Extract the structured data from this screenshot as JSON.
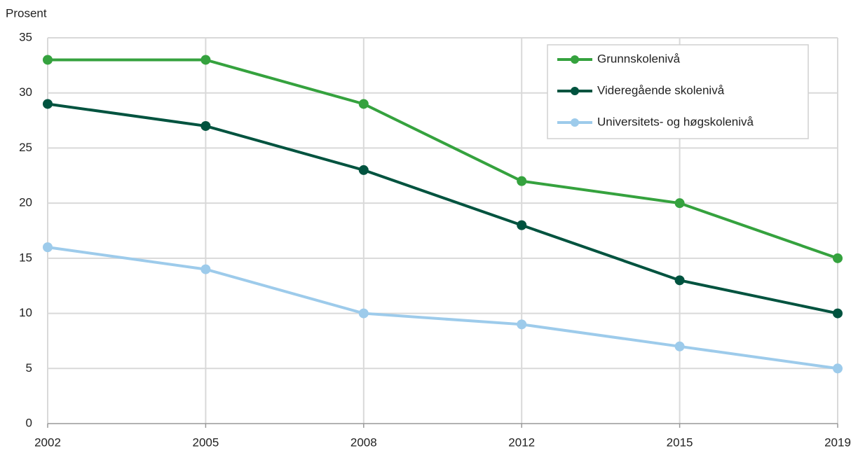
{
  "chart_data": {
    "type": "line",
    "y_label": "Prosent",
    "categories": [
      "2002",
      "2005",
      "2008",
      "2012",
      "2015",
      "2019"
    ],
    "series": [
      {
        "name": "Grunnskolenivå",
        "color": "#35a23e",
        "values": [
          33,
          33,
          29,
          22,
          20,
          15
        ]
      },
      {
        "name": "Videregående skolenivå",
        "color": "#00533f",
        "values": [
          29,
          27,
          23,
          18,
          13,
          10
        ]
      },
      {
        "name": "Universitets- og høgskolenivå",
        "color": "#9dcbeb",
        "values": [
          16,
          14,
          10,
          9,
          7,
          5
        ]
      }
    ],
    "ylim": [
      0,
      35
    ],
    "yticks": [
      0,
      5,
      10,
      15,
      20,
      25,
      30,
      35
    ],
    "grid": true,
    "legend": "top-right"
  }
}
